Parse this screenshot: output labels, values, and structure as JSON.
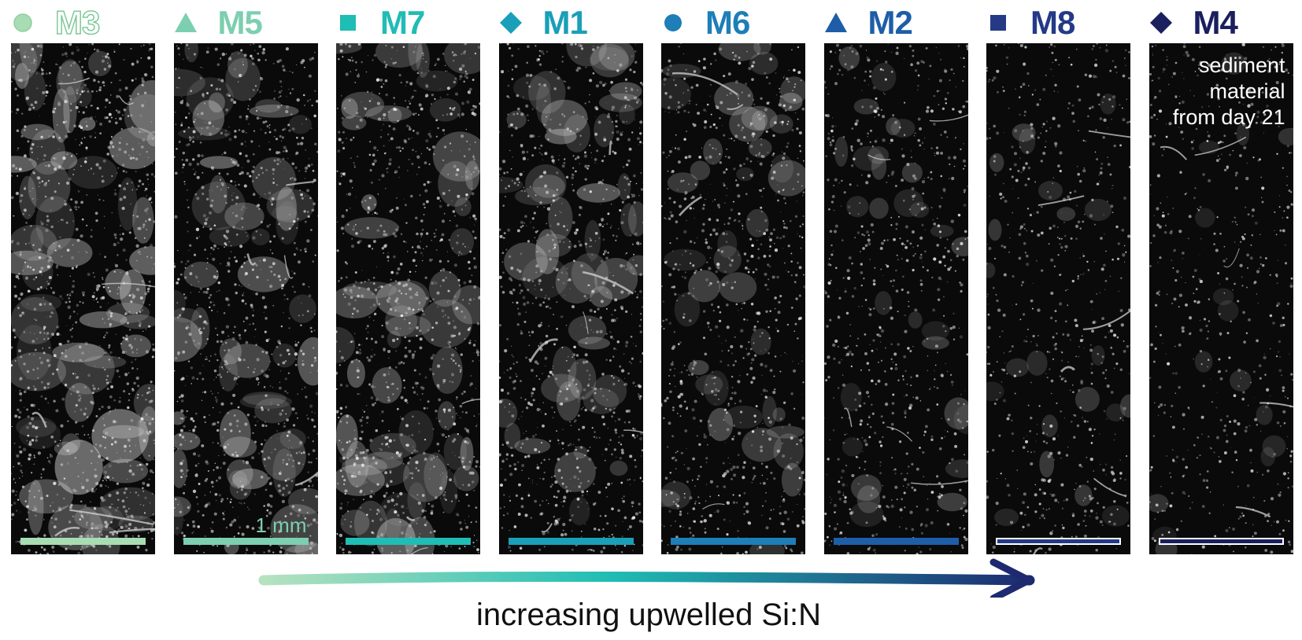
{
  "panels": [
    {
      "label": "M3",
      "marker": "circle",
      "color": "#a8dcb3",
      "outline": true,
      "density": "very-high",
      "scalebar_label": ""
    },
    {
      "label": "M5",
      "marker": "triangle",
      "color": "#7ccfb0",
      "outline": false,
      "density": "high",
      "scalebar_label": "1 mm"
    },
    {
      "label": "M7",
      "marker": "square",
      "color": "#1fbdb4",
      "outline": false,
      "density": "high",
      "scalebar_label": ""
    },
    {
      "label": "M1",
      "marker": "diamond",
      "color": "#1a9fb8",
      "outline": false,
      "density": "medium-high",
      "scalebar_label": ""
    },
    {
      "label": "M6",
      "marker": "circle",
      "color": "#1d7eb8",
      "outline": false,
      "density": "medium",
      "scalebar_label": ""
    },
    {
      "label": "M2",
      "marker": "triangle",
      "color": "#1e5ea8",
      "outline": false,
      "density": "medium-low",
      "scalebar_label": ""
    },
    {
      "label": "M8",
      "marker": "square",
      "color": "#243a87",
      "outline": false,
      "density": "low",
      "scalebar_label": "",
      "hollow_bar": true
    },
    {
      "label": "M4",
      "marker": "diamond",
      "color": "#1a1f5e",
      "outline": false,
      "density": "very-low",
      "scalebar_label": "",
      "hollow_bar": true,
      "note": [
        "sediment",
        "material",
        "from day 21"
      ]
    }
  ],
  "axis": {
    "caption": "increasing upwelled Si:N",
    "gradient_start": "#b6e2bf",
    "gradient_mid": "#1fbdb4",
    "gradient_end": "#1d2a70"
  }
}
